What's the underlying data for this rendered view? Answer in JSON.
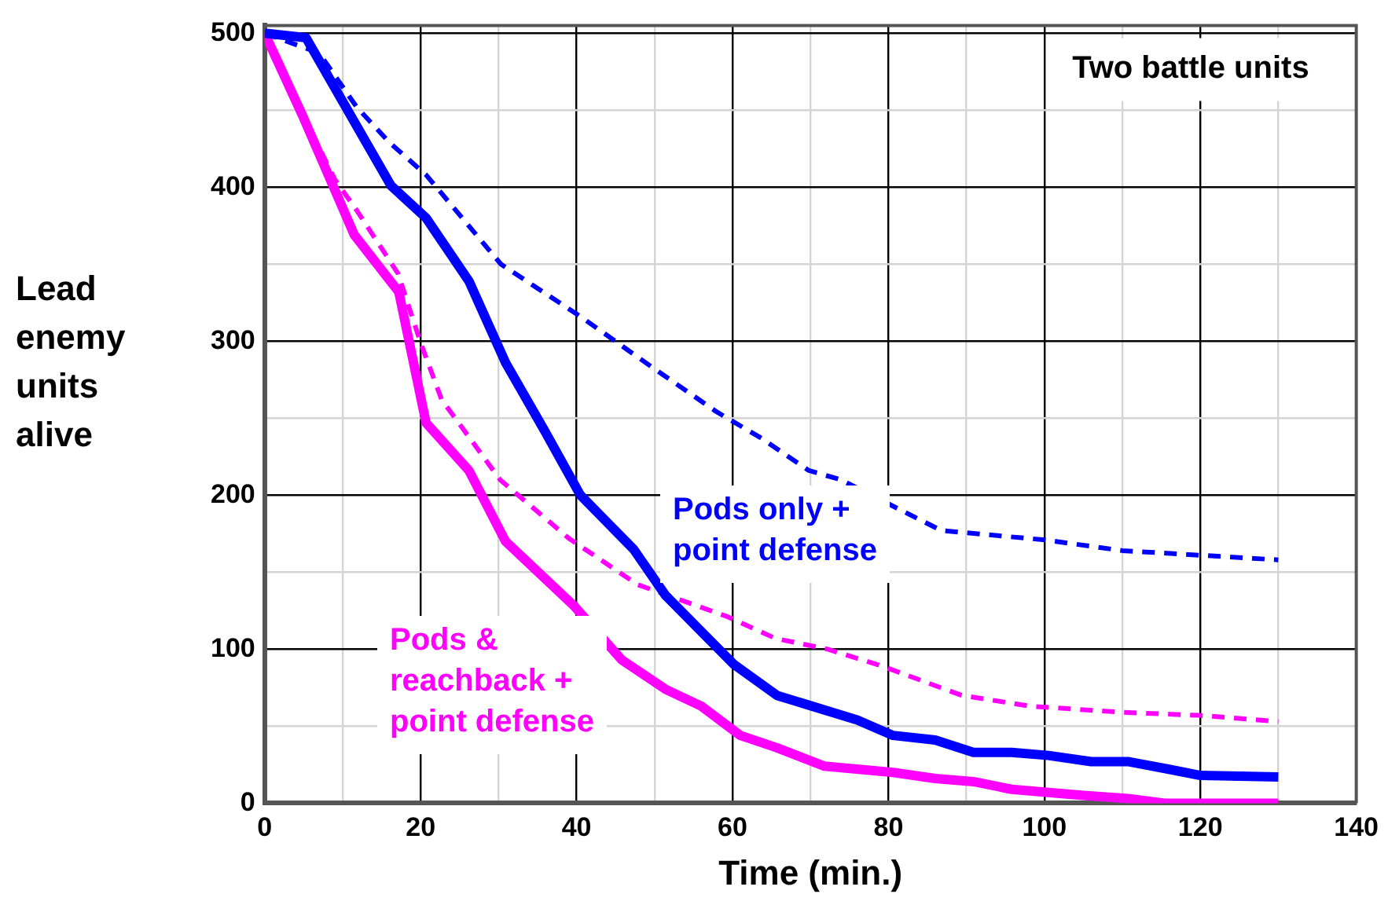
{
  "chart_data": {
    "type": "line",
    "xlabel": "Time (min.)",
    "ylabel": "Lead enemy units alive",
    "annotations": [
      "Two battle units"
    ],
    "xlim": [
      0,
      140
    ],
    "xticks": [
      0,
      {
        "value": 10,
        "label": null
      },
      20,
      {
        "value": 30,
        "label": null
      },
      40,
      {
        "value": 50,
        "label": null
      },
      60,
      {
        "value": 70,
        "label": null
      },
      80,
      {
        "value": 90,
        "label": null
      },
      100,
      {
        "value": 110,
        "label": null
      },
      120,
      {
        "value": 130,
        "label": null
      },
      140
    ],
    "ylim": [
      0,
      505
    ],
    "yticks": [
      0,
      {
        "value": 50,
        "label": null
      },
      100,
      {
        "value": 150,
        "label": null
      },
      200,
      {
        "value": 250,
        "label": null
      },
      300,
      {
        "value": 350,
        "label": null
      },
      400,
      {
        "value": 450,
        "label": null
      },
      500
    ],
    "grid": true,
    "legend": false,
    "marker": "none",
    "series": [
      {
        "color": "#0000ff",
        "line_style": "dashed",
        "x": [
          0,
          7,
          11.8,
          16,
          20.7,
          30.3,
          40.5,
          50,
          58,
          63.7,
          69.8,
          73.9,
          86.8,
          100,
          110,
          120,
          130
        ],
        "values": [
          500,
          487,
          452,
          429,
          408,
          350,
          316,
          282,
          254,
          237,
          216,
          210,
          177,
          171,
          164,
          161,
          158
        ]
      },
      {
        "name": "Pods only + point defense",
        "color": "#0000ff",
        "line_style": "solid",
        "x": [
          0,
          5.3,
          16.2,
          20.7,
          26.2,
          30.9,
          36,
          40.5,
          47.3,
          51.4,
          60.2,
          65.7,
          76,
          80.6,
          86,
          90.9,
          95.8,
          100.5,
          106,
          110.7,
          116,
          120,
          130
        ],
        "values": [
          500,
          497,
          401,
          380,
          339,
          286,
          241,
          200,
          165,
          135,
          90,
          70,
          54,
          44,
          41,
          33,
          33,
          31,
          27,
          27,
          22,
          18,
          17
        ]
      },
      {
        "color": "#ff00ff",
        "line_style": "dashed",
        "x": [
          0,
          5.7,
          9,
          11.8,
          17.1,
          20,
          22.7,
          25.3,
          30.2,
          39,
          47.8,
          59.4,
          65.5,
          72.2,
          79.2,
          89.4,
          98.2,
          110,
          120,
          130
        ],
        "values": [
          500,
          439,
          405,
          385,
          344,
          299,
          262,
          244,
          210,
          172,
          142,
          121,
          107,
          100,
          89,
          70,
          63,
          59,
          57,
          53
        ]
      },
      {
        "name": "Pods & reachback + point defense",
        "color": "#ff00ff",
        "line_style": "solid",
        "x": [
          0,
          4.9,
          11.5,
          17.2,
          20.7,
          26.2,
          30.9,
          39.7,
          45.8,
          51.4,
          56,
          61,
          65.7,
          71.8,
          80.6,
          86,
          90.9,
          95.8,
          105,
          110.7,
          115.4,
          130
        ],
        "values": [
          500,
          446,
          369,
          332,
          247,
          216,
          170,
          128,
          93,
          74,
          63,
          44,
          36,
          24,
          20,
          16,
          14,
          9,
          5,
          3,
          0,
          0
        ]
      }
    ]
  }
}
